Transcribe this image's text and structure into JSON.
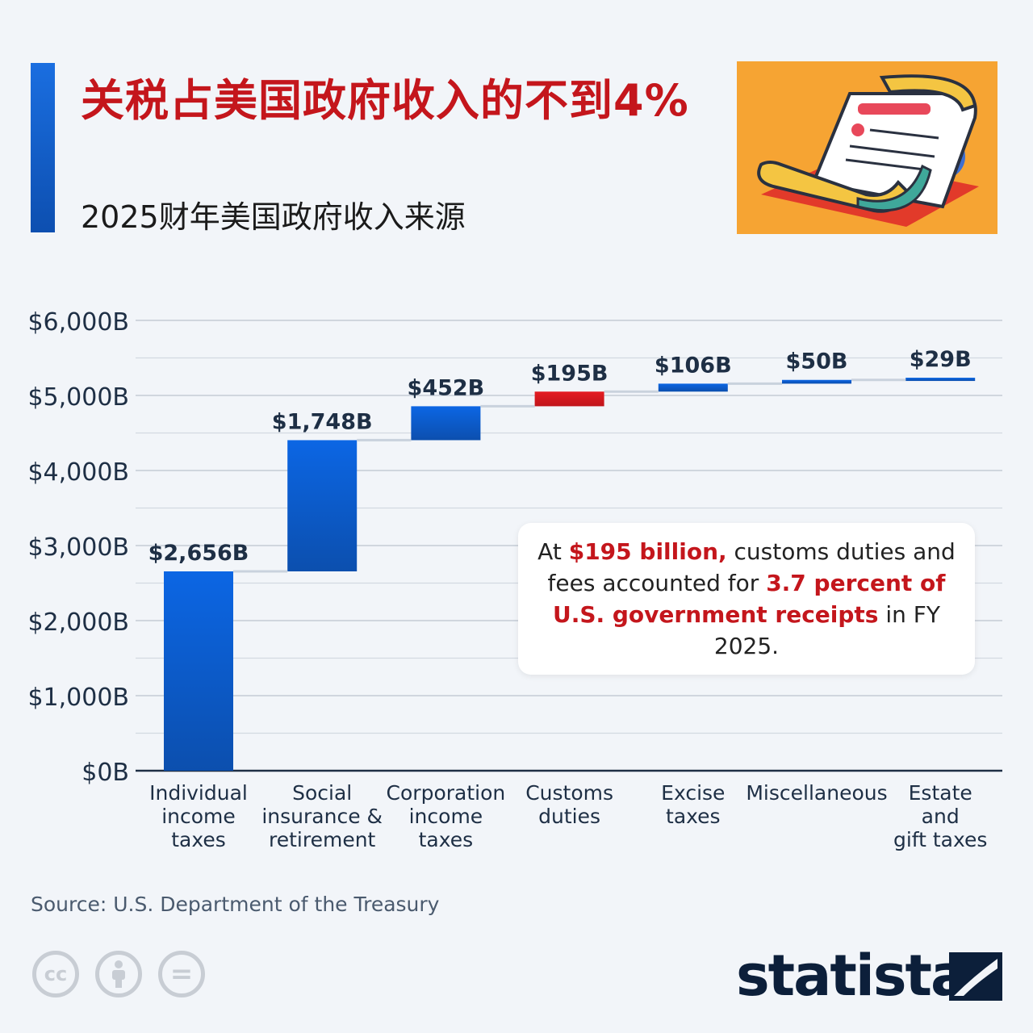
{
  "header": {
    "title": "关税占美国政府收入的不到4%",
    "subtitle": "2025财年美国政府收入来源"
  },
  "colors": {
    "bar_blue": "#0b5fd0",
    "bar_red": "#d2181f",
    "title_red": "#c4161c",
    "axis_text": "#1e2f45"
  },
  "chart_data": {
    "type": "bar",
    "subtype": "waterfall",
    "categories": [
      [
        "Individual",
        "income",
        "taxes"
      ],
      [
        "Social",
        "insurance &",
        "retirement"
      ],
      [
        "Corporation",
        "income",
        "taxes"
      ],
      [
        "Customs",
        "duties"
      ],
      [
        "Excise",
        "taxes"
      ],
      [
        "Miscellaneous"
      ],
      [
        "Estate",
        "and",
        "gift taxes"
      ]
    ],
    "values": [
      2656,
      1748,
      452,
      195,
      106,
      50,
      29
    ],
    "value_labels": [
      "$2,656B",
      "$1,748B",
      "$452B",
      "$195B",
      "$106B",
      "$50B",
      "$29B"
    ],
    "highlight_index": 3,
    "ylim": [
      0,
      6000
    ],
    "yticks": [
      0,
      1000,
      2000,
      3000,
      4000,
      5000,
      6000
    ],
    "ytick_labels": [
      "$0B",
      "$1,000B",
      "$2,000B",
      "$3,000B",
      "$4,000B",
      "$5,000B",
      "$6,000B"
    ],
    "grid": true
  },
  "callout": {
    "part1": "At ",
    "part2": "$195 billion,",
    "part3": " customs duties and fees accounted for ",
    "part4": "3.7 percent of U.S. government receipts",
    "part5": " in FY 2025."
  },
  "footer": {
    "source": "Source: U.S. Department of the Treasury",
    "license_icons": [
      "cc-icon",
      "attribution-icon",
      "no-derivatives-icon"
    ],
    "cc_text": "cc",
    "nd_text": "=",
    "logo": "statista"
  }
}
